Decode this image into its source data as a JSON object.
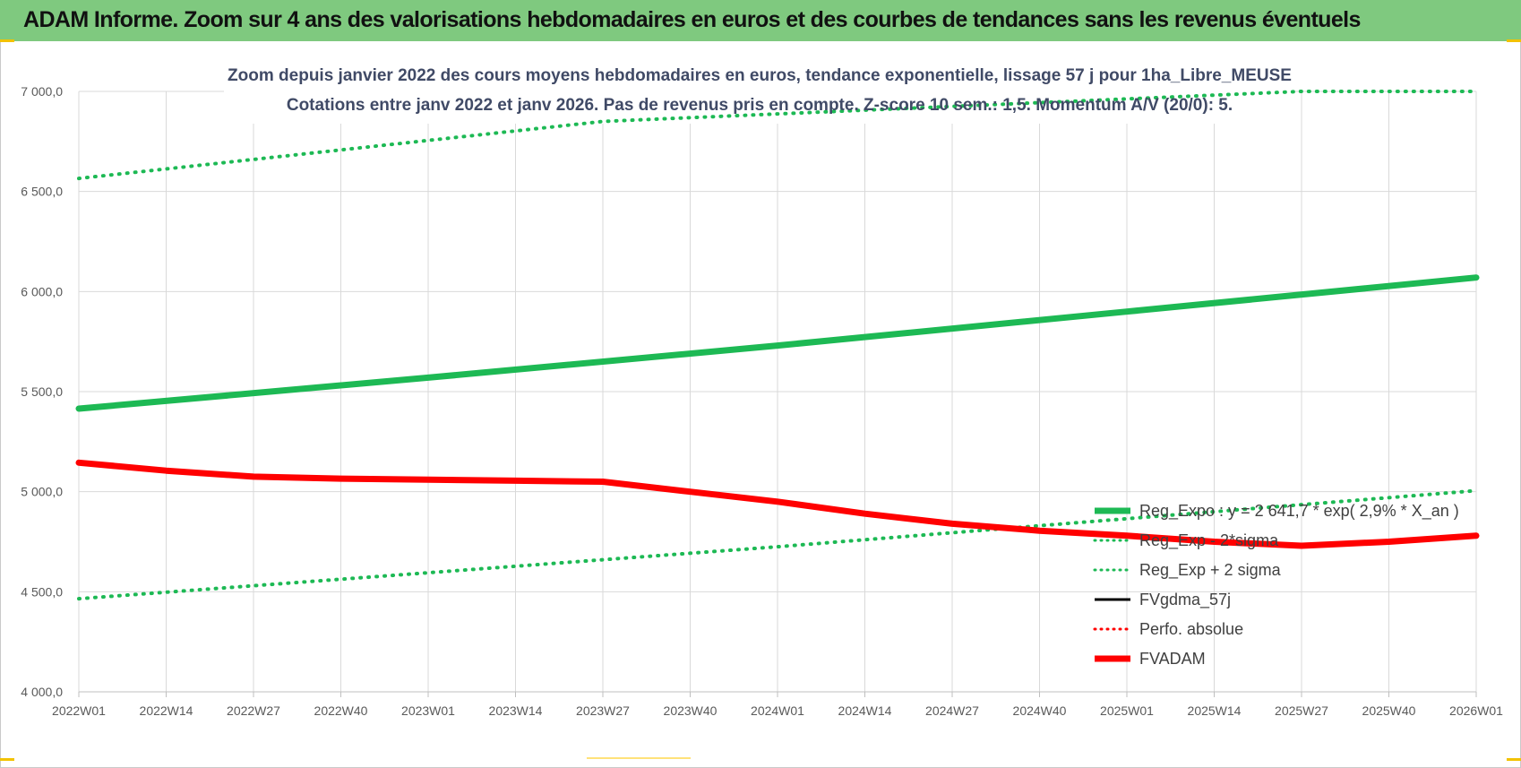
{
  "banner": {
    "title": "ADAM Informe. Zoom sur 4 ans des valorisations hebdomadaires en euros et des courbes de tendances sans les revenus éventuels"
  },
  "colors": {
    "banner": "#7fc97f",
    "green": "#1db954",
    "red": "#ff0000",
    "black": "#000000"
  },
  "chart_data": {
    "type": "line",
    "title": "Zoom depuis janvier 2022 des cours moyens hebdomadaires en euros, tendance exponentielle, lissage 57 j pour 1ha_Libre_MEUSE",
    "subtitle": "Cotations entre janv 2022 et janv 2026. Pas de revenus pris en compte. Z-score 10 sem.: 1,5. Momentum A/V (20/0): 5.",
    "x_ticks": [
      "2022W01",
      "2022W14",
      "2022W27",
      "2022W40",
      "2023W01",
      "2023W14",
      "2023W27",
      "2023W40",
      "2024W01",
      "2024W14",
      "2024W27",
      "2024W40",
      "2025W01",
      "2025W14",
      "2025W27",
      "2025W40",
      "2026W01"
    ],
    "y_ticks": [
      "4 000,0",
      "4 500,0",
      "5 000,0",
      "5 500,0",
      "6 000,0",
      "6 500,0",
      "7 000,0"
    ],
    "ylim": [
      4000,
      7000
    ],
    "grid": true,
    "legend_position": "bottom-right",
    "series": [
      {
        "name": "Reg_Expo : y = 2 641,7 * exp( 2,9% *  X_an )",
        "style": "solid-thick",
        "color": "#1db954",
        "points": [
          [
            "2022W01",
            5415
          ],
          [
            "2023W01",
            5570
          ],
          [
            "2024W01",
            5730
          ],
          [
            "2025W01",
            5900
          ],
          [
            "2026W01",
            6070
          ]
        ]
      },
      {
        "name": "Reg_Exp - 2*sigma",
        "style": "dotted",
        "color": "#1db954",
        "points": [
          [
            "2022W01",
            4465
          ],
          [
            "2023W01",
            4595
          ],
          [
            "2024W01",
            4725
          ],
          [
            "2025W01",
            4865
          ],
          [
            "2026W01",
            5005
          ]
        ]
      },
      {
        "name": "Reg_Exp + 2 sigma",
        "style": "dotted",
        "color": "#1db954",
        "points": [
          [
            "2022W01",
            6565
          ],
          [
            "2023W01",
            6755
          ],
          [
            "2023W27",
            6850
          ],
          [
            "2025W27",
            7000
          ],
          [
            "2026W01",
            7000
          ]
        ]
      },
      {
        "name": "FVgdma_57j",
        "style": "solid",
        "color": "#000000",
        "points": [
          [
            "2022W01",
            5145
          ],
          [
            "2022W14",
            5105
          ],
          [
            "2022W27",
            5070
          ],
          [
            "2022W40",
            5065
          ],
          [
            "2023W01",
            5060
          ],
          [
            "2023W14",
            5055
          ],
          [
            "2023W27",
            5045
          ],
          [
            "2023W40",
            5000
          ],
          [
            "2024W01",
            4950
          ],
          [
            "2024W14",
            4890
          ],
          [
            "2024W27",
            4840
          ],
          [
            "2024W40",
            4805
          ],
          [
            "2025W01",
            4775
          ],
          [
            "2025W14",
            4750
          ],
          [
            "2025W27",
            4735
          ],
          [
            "2025W40",
            4750
          ],
          [
            "2026W01",
            4775
          ]
        ]
      },
      {
        "name": "Perfo. absolue",
        "style": "dotted",
        "color": "#ff0000",
        "points": []
      },
      {
        "name": "FVADAM",
        "style": "solid-thick",
        "color": "#ff0000",
        "points": [
          [
            "2022W01",
            5145
          ],
          [
            "2022W14",
            5105
          ],
          [
            "2022W27",
            5075
          ],
          [
            "2022W40",
            5065
          ],
          [
            "2023W01",
            5060
          ],
          [
            "2023W14",
            5055
          ],
          [
            "2023W27",
            5050
          ],
          [
            "2023W40",
            5000
          ],
          [
            "2024W01",
            4950
          ],
          [
            "2024W14",
            4890
          ],
          [
            "2024W27",
            4840
          ],
          [
            "2024W40",
            4805
          ],
          [
            "2025W01",
            4780
          ],
          [
            "2025W14",
            4750
          ],
          [
            "2025W27",
            4730
          ],
          [
            "2025W40",
            4750
          ],
          [
            "2026W01",
            4780
          ]
        ]
      }
    ]
  }
}
